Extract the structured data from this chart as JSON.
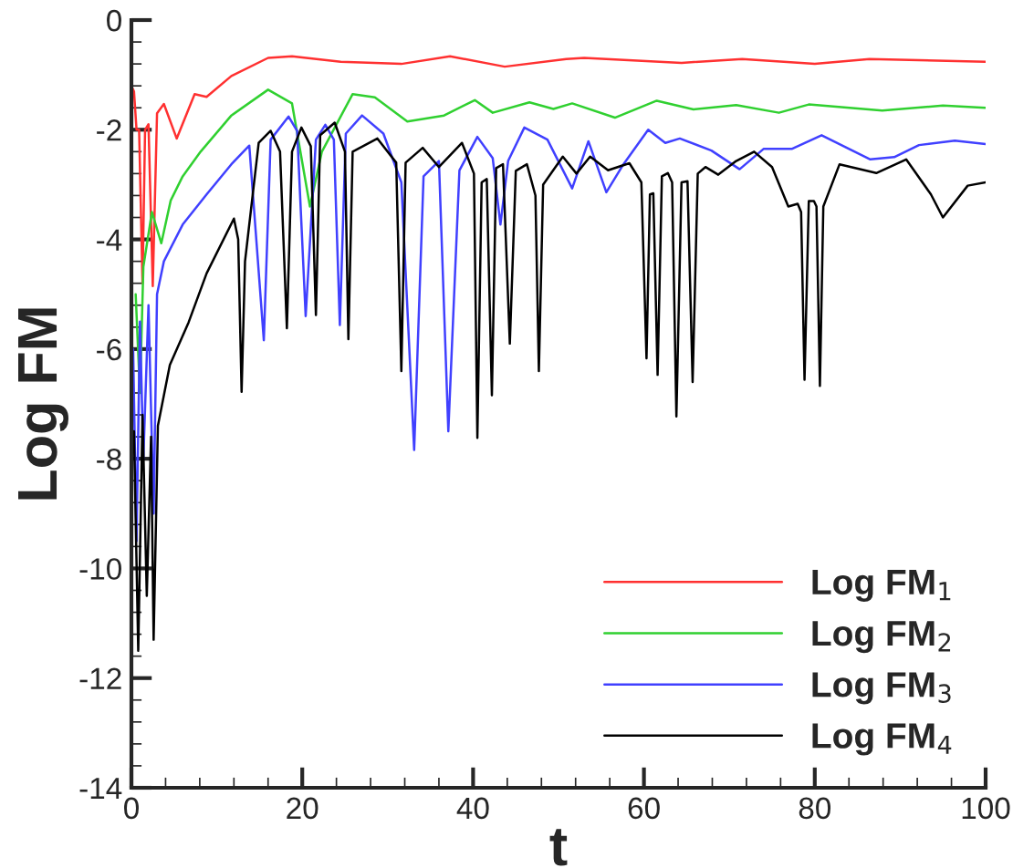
{
  "chart_data": {
    "type": "line",
    "xlabel": "t",
    "ylabel": "Log FM",
    "xlim": [
      0,
      100
    ],
    "ylim": [
      -14,
      0
    ],
    "xticks": [
      0,
      20,
      40,
      60,
      80,
      100
    ],
    "yticks": [
      -14,
      -12,
      -10,
      -8,
      -6,
      -4,
      -2,
      0
    ],
    "legend": "bottom right",
    "grid": false,
    "marker": "none",
    "line_style": "solid",
    "series": [
      {
        "name": "Log FM$_{1}$",
        "color": "#ff3030",
        "x": [
          0,
          0.3,
          0.6,
          0.9,
          1.3,
          1.6,
          2.0,
          2.5,
          3.0,
          3.8,
          5.3,
          7.4,
          8.8,
          11.7,
          16,
          18.8,
          24.5,
          31.6,
          37.3,
          43.7,
          50.9,
          53,
          64.4,
          71.5,
          80,
          86.4,
          100
        ],
        "values": [
          -1.2,
          -1.3,
          -2.0,
          -2.0,
          -4.8,
          -2.0,
          -1.9,
          -4.85,
          -1.7,
          -1.53,
          -2.16,
          -1.35,
          -1.4,
          -1.02,
          -0.69,
          -0.66,
          -0.76,
          -0.8,
          -0.66,
          -0.85,
          -0.71,
          -0.69,
          -0.78,
          -0.71,
          -0.8,
          -0.71,
          -0.76
        ]
      },
      {
        "name": "Log FM$_{2}$",
        "color": "#30d030",
        "x": [
          0.5,
          1.0,
          1.4,
          1.7,
          2.4,
          3.5,
          4.6,
          6,
          8.1,
          11.7,
          16,
          18.8,
          20.9,
          22.3,
          25.9,
          28.5,
          32.3,
          36.6,
          40.2,
          42.3,
          46.6,
          49.4,
          51.6,
          56.6,
          61.5,
          65.8,
          70.8,
          75.8,
          79.3,
          87.9,
          95,
          100
        ],
        "values": [
          -5.0,
          -6.8,
          -4.5,
          null,
          -3.5,
          -4.07,
          -3.29,
          -2.85,
          -2.4,
          -1.74,
          -1.27,
          -1.52,
          -3.4,
          -2.4,
          -1.35,
          -1.41,
          -1.85,
          -1.74,
          -1.46,
          -1.69,
          -1.5,
          -1.62,
          -1.52,
          -1.78,
          -1.47,
          -1.63,
          -1.55,
          -1.69,
          -1.54,
          -1.65,
          -1.56,
          -1.6
        ]
      },
      {
        "name": "Log FM$_{3}$",
        "color": "#4040ff",
        "x": [
          0.2,
          0.6,
          1.0,
          1.4,
          2.0,
          2.6,
          3.0,
          3.8,
          6,
          8.8,
          11.7,
          13.8,
          15.5,
          16.3,
          18.4,
          19.4,
          20.4,
          21.6,
          22.7,
          23.7,
          24.4,
          25.1,
          27,
          29.5,
          31.6,
          33.1,
          34.2,
          36,
          37.1,
          38.4,
          40.5,
          42.3,
          43.2,
          44.1,
          46,
          48.7,
          51.6,
          53.5,
          55.6,
          57.6,
          60.5,
          62.5,
          64.2,
          67.9,
          71.2,
          74,
          77.3,
          80.8,
          86.5,
          89.3,
          92.2,
          96.4,
          100
        ],
        "values": [
          -6.0,
          -9.5,
          -5.5,
          -8.0,
          -5.2,
          -9.0,
          -5.0,
          -4.4,
          -3.73,
          -3.18,
          -2.63,
          -2.29,
          -5.84,
          -2.18,
          -1.76,
          -2.02,
          -5.4,
          -2.18,
          -1.91,
          -2.18,
          -5.56,
          -2.07,
          -1.74,
          -2.07,
          -2.96,
          -7.84,
          -2.85,
          -2.57,
          -7.5,
          -2.74,
          -2.13,
          -2.52,
          -3.73,
          -2.57,
          -1.96,
          -2.18,
          -3.07,
          -2.21,
          -3.14,
          -2.63,
          -2.0,
          -2.24,
          -2.16,
          -2.38,
          -2.72,
          -2.35,
          -2.35,
          -2.1,
          -2.54,
          -2.5,
          -2.28,
          -2.2,
          -2.26
        ]
      },
      {
        "name": "Log FM$_{4}$",
        "color": "#000000",
        "x": [
          0.3,
          0.8,
          1.3,
          1.8,
          2.3,
          2.6,
          3.1,
          4.5,
          6.7,
          8.8,
          12,
          12.5,
          12.9,
          13.3,
          14.9,
          16.3,
          17.4,
          18.2,
          18.8,
          19.9,
          21.0,
          21.6,
          22.1,
          23.8,
          25.0,
          25.4,
          25.9,
          28.8,
          31.0,
          31.6,
          32.1,
          34.1,
          36.0,
          38.7,
          40.1,
          40.5,
          41.0,
          41.6,
          42.2,
          42.7,
          43.5,
          44.3,
          45.0,
          46.3,
          47.3,
          47.7,
          48.2,
          50.5,
          52.1,
          53.7,
          55.8,
          58.3,
          59.7,
          60.3,
          60.7,
          61.1,
          61.6,
          62.1,
          62.8,
          63.3,
          63.8,
          64.4,
          65.1,
          65.7,
          66.3,
          67.2,
          68.7,
          70.8,
          72.9,
          75.0,
          76.9,
          78.0,
          78.4,
          78.8,
          79.3,
          79.9,
          80.2,
          80.6,
          81.0,
          82.9,
          87.2,
          90.7,
          93.6,
          95,
          97.9,
          100
        ],
        "values": [
          -7.5,
          -11.5,
          -7.2,
          -10.5,
          -7.6,
          -11.3,
          -7.4,
          -6.29,
          -5.51,
          -4.62,
          -3.62,
          -4.0,
          -6.78,
          -4.4,
          -2.24,
          -2.02,
          -2.4,
          -5.62,
          -2.4,
          -1.96,
          -2.3,
          -5.38,
          -2.1,
          -1.87,
          -2.4,
          -5.82,
          -2.4,
          -2.16,
          -2.6,
          -6.4,
          -2.6,
          -2.33,
          -2.68,
          -2.24,
          -2.8,
          -7.62,
          -2.96,
          -2.9,
          -6.84,
          -2.7,
          -2.63,
          -5.9,
          -2.75,
          -2.63,
          -3.2,
          -6.4,
          -3.0,
          -2.49,
          -2.8,
          -2.49,
          -2.74,
          -2.61,
          -2.96,
          -6.17,
          -3.18,
          -3.16,
          -6.47,
          -2.85,
          -2.79,
          -2.96,
          -7.23,
          -2.96,
          -2.94,
          -6.6,
          -2.8,
          -2.68,
          -2.82,
          -2.57,
          -2.4,
          -2.68,
          -3.4,
          -3.35,
          -3.5,
          -6.56,
          -3.3,
          -3.3,
          -3.4,
          -6.67,
          -3.4,
          -2.63,
          -2.79,
          -2.54,
          -3.18,
          -3.6,
          -3.02,
          -2.96
        ]
      }
    ]
  }
}
